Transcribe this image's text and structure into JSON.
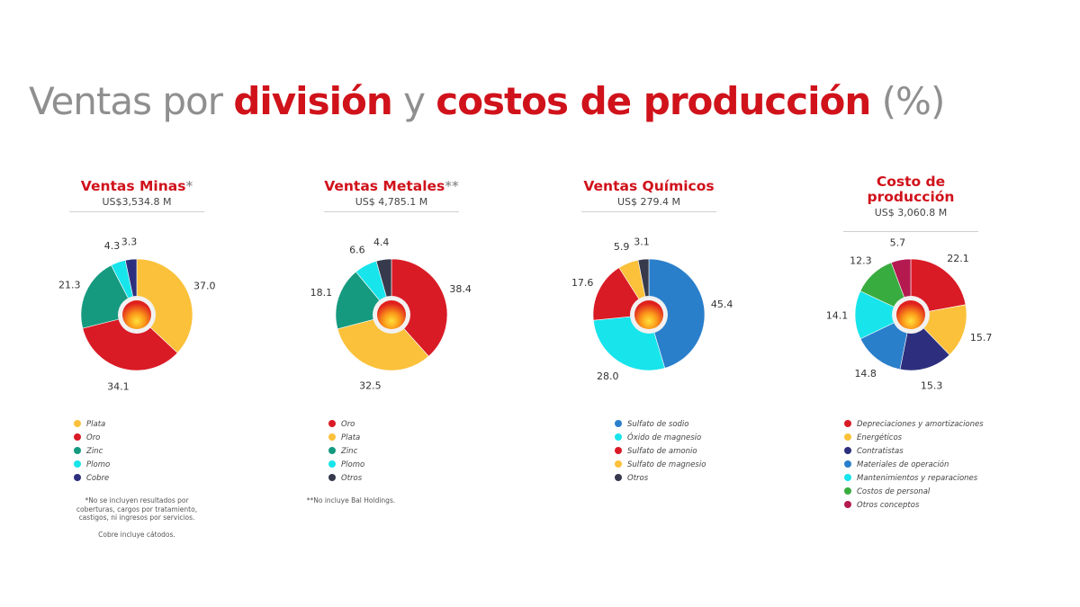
{
  "title": {
    "part1": "Ventas por ",
    "part2": "división",
    "part3": " y ",
    "part4": "costos de producción",
    "part5": " (%)"
  },
  "chart_data": [
    {
      "type": "pie",
      "title": "Ventas Minas",
      "title_suffix": "*",
      "subtitle": "US$3,534.8 M",
      "series": [
        {
          "name": "Plata",
          "value": 37.0,
          "label": "37.0",
          "color": "#fbc13a"
        },
        {
          "name": "Oro",
          "value": 34.1,
          "label": "34.1",
          "color": "#d91b26"
        },
        {
          "name": "Zinc",
          "value": 21.3,
          "label": "21.3",
          "color": "#169a7f"
        },
        {
          "name": "Plomo",
          "value": 4.3,
          "label": "4.3",
          "color": "#18e4eb"
        },
        {
          "name": "Cobre",
          "value": 3.3,
          "label": "3.3",
          "color": "#2d2f7e"
        }
      ],
      "notes": [
        "*No se incluyen resultados por",
        "coberturas, cargos por tratamiento,",
        "castigos, ni ingresos por servicios.",
        "",
        "Cobre incluye cátodos."
      ]
    },
    {
      "type": "pie",
      "title": "Ventas Metales",
      "title_suffix": "**",
      "subtitle": "US$ 4,785.1 M",
      "series": [
        {
          "name": "Oro",
          "value": 38.4,
          "label": "38.4",
          "color": "#d91b26"
        },
        {
          "name": "Plata",
          "value": 32.5,
          "label": "32.5",
          "color": "#fbc13a"
        },
        {
          "name": "Zinc",
          "value": 18.1,
          "label": "18.1",
          "color": "#169a7f"
        },
        {
          "name": "Plomo",
          "value": 6.6,
          "label": "6.6",
          "color": "#18e4eb"
        },
        {
          "name": "Otros",
          "value": 4.4,
          "label": "4.4",
          "color": "#363a4c"
        }
      ],
      "notes": [
        "**No incluye Bal Holdings."
      ]
    },
    {
      "type": "pie",
      "title": "Ventas Químicos",
      "title_suffix": "",
      "subtitle": "US$ 279.4 M",
      "series": [
        {
          "name": "Sulfato de sodio",
          "value": 45.4,
          "label": "45.4",
          "color": "#2a7fcb"
        },
        {
          "name": "Óxido de magnesio",
          "value": 28.0,
          "label": "28.0",
          "color": "#18e4eb"
        },
        {
          "name": "Sulfato de amonio",
          "value": 17.6,
          "label": "17.6",
          "color": "#d91b26"
        },
        {
          "name": "Sulfato de magnesio",
          "value": 5.9,
          "label": "5.9",
          "color": "#fbc13a"
        },
        {
          "name": "Otros",
          "value": 3.1,
          "label": "3.1",
          "color": "#363a4c"
        }
      ],
      "notes": []
    },
    {
      "type": "pie",
      "title": "Costo de producción",
      "title_line1": "Costo de",
      "title_line2": "producción",
      "title_suffix": "",
      "subtitle": "US$ 3,060.8 M",
      "series": [
        {
          "name": "Depreciaciones y amortizaciones",
          "value": 22.1,
          "label": "22.1",
          "color": "#d91b26"
        },
        {
          "name": "Energéticos",
          "value": 15.7,
          "label": "15.7",
          "color": "#fbc13a"
        },
        {
          "name": "Contratistas",
          "value": 15.3,
          "label": "15.3",
          "color": "#2d2f7e"
        },
        {
          "name": "Materiales de operación",
          "value": 14.8,
          "label": "14.8",
          "color": "#2a7fcb"
        },
        {
          "name": "Mantenimientos y reparaciones",
          "value": 14.1,
          "label": "14.1",
          "color": "#18e4eb"
        },
        {
          "name": "Costos de personal",
          "value": 12.3,
          "label": "12.3",
          "color": "#39ac3f"
        },
        {
          "name": "Otros conceptos",
          "value": 5.7,
          "label": "5.7",
          "color": "#b41a50"
        }
      ],
      "notes": []
    }
  ]
}
